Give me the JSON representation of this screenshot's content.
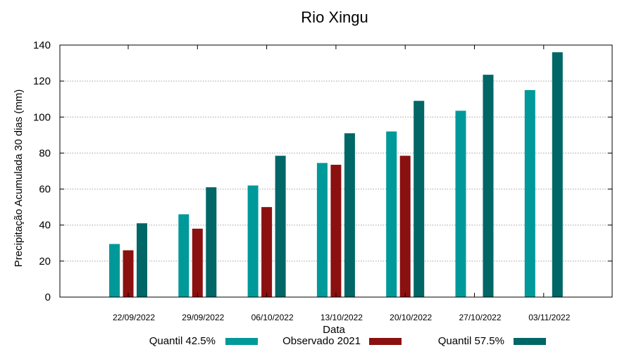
{
  "chart_data": {
    "type": "bar",
    "title": "Rio Xingu",
    "xlabel": "Data",
    "ylabel": "Precipitação Acumulada 30 dias (mm)",
    "ylim": [
      0,
      140
    ],
    "yticks": [
      0,
      20,
      40,
      60,
      80,
      100,
      120,
      140
    ],
    "grid": true,
    "legend_position": "bottom",
    "categories": [
      "22/09/2022",
      "29/09/2022",
      "06/10/2022",
      "13/10/2022",
      "20/10/2022",
      "27/10/2022",
      "03/11/2022"
    ],
    "series": [
      {
        "name": "Quantil 42.5%",
        "color": "#009999",
        "values": [
          29.5,
          46,
          62,
          74.5,
          92,
          103.5,
          115
        ]
      },
      {
        "name": "Observado 2021",
        "color": "#8b1010",
        "values": [
          26,
          38,
          50,
          73.5,
          78.5,
          null,
          null
        ]
      },
      {
        "name": "Quantil 57.5%",
        "color": "#006666",
        "values": [
          41,
          61,
          78.5,
          91,
          109,
          123.5,
          136
        ]
      }
    ]
  }
}
